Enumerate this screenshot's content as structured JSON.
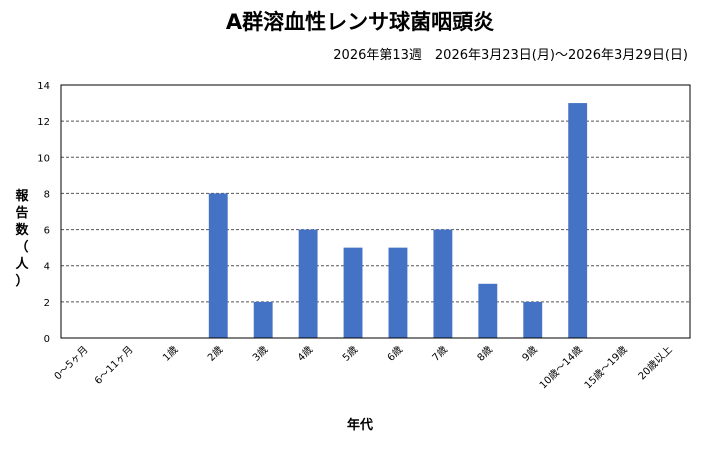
{
  "chart_data": {
    "type": "bar",
    "title": "A群溶血性レンサ球菌咽頭炎",
    "subtitle": "2026年第13週　2026年3月23日(月)〜2026年3月29日(日)",
    "ylabel": "報告数（人）",
    "xlabel": "年代",
    "categories": [
      "0〜5ヶ月",
      "6〜11ヶ月",
      "1歳",
      "2歳",
      "3歳",
      "4歳",
      "5歳",
      "6歳",
      "7歳",
      "8歳",
      "9歳",
      "10歳〜14歳",
      "15歳〜19歳",
      "20歳以上"
    ],
    "values": [
      0,
      0,
      0,
      8,
      2,
      6,
      5,
      5,
      6,
      3,
      2,
      13,
      0,
      0
    ],
    "ylim": [
      0,
      14
    ],
    "yticks": [
      0,
      2,
      4,
      6,
      8,
      10,
      12,
      14
    ],
    "grid": true,
    "bar_color": "#4472c4",
    "legend": "none"
  }
}
